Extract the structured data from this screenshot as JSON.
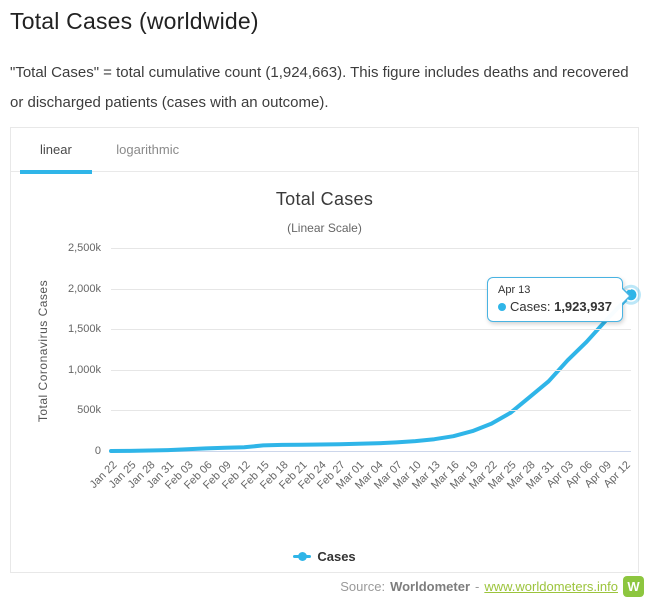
{
  "page": {
    "title": "Total Cases (worldwide)",
    "description": "\"Total Cases\" = total cumulative count (1,924,663). This figure includes deaths and recovered or discharged patients (cases with an outcome)."
  },
  "tabs": [
    {
      "label": "linear",
      "active": true
    },
    {
      "label": "logarithmic",
      "active": false
    }
  ],
  "chart_data": {
    "type": "line",
    "title": "Total Cases",
    "subtitle": "(Linear Scale)",
    "xlabel": "",
    "ylabel": "Total Coronavirus Cases",
    "ylim": [
      0,
      2500000
    ],
    "yticks": [
      0,
      500000,
      1000000,
      1500000,
      2000000,
      2500000
    ],
    "ytick_labels": [
      "0",
      "500k",
      "1,000k",
      "1,500k",
      "2,000k",
      "2,500k"
    ],
    "grid": true,
    "legend_position": "bottom",
    "tick_interval_days": 3,
    "categories": [
      "Jan 22",
      "Jan 25",
      "Jan 28",
      "Jan 31",
      "Feb 03",
      "Feb 06",
      "Feb 09",
      "Feb 12",
      "Feb 15",
      "Feb 18",
      "Feb 21",
      "Feb 24",
      "Feb 27",
      "Mar 01",
      "Mar 04",
      "Mar 07",
      "Mar 10",
      "Mar 13",
      "Mar 16",
      "Mar 19",
      "Mar 22",
      "Mar 25",
      "Mar 28",
      "Mar 31",
      "Apr 03",
      "Apr 06",
      "Apr 09",
      "Apr 12"
    ],
    "series": [
      {
        "name": "Cases",
        "color": "#2fb5e8",
        "values": [
          580,
          1438,
          5578,
          11374,
          20630,
          31481,
          40553,
          45221,
          69050,
          75184,
          77794,
          80087,
          83103,
          88585,
          95120,
          105836,
          121564,
          145416,
          182406,
          244933,
          337469,
          471035,
          663127,
          858355,
          1116662,
          1345101,
          1603719,
          1852365
        ]
      }
    ],
    "last_point": {
      "label": "Apr 13",
      "value": 1923937
    }
  },
  "tooltip": {
    "date": "Apr 13",
    "series_label": "Cases:",
    "value": "1,923,937"
  },
  "legend": {
    "label": "Cases"
  },
  "footer": {
    "source_prefix": "Source:",
    "source_name": "Worldometer",
    "separator": "-",
    "link_text": "www.worldometers.info",
    "logo_letter": "W"
  },
  "colors": {
    "accent_blue": "#2fb5e8",
    "gridline": "#e6e6e6",
    "axis_line": "#ccd6eb",
    "link_green": "#9cc43c",
    "logo_green": "#8dc63f",
    "tooltip_border": "#49b3e2"
  }
}
